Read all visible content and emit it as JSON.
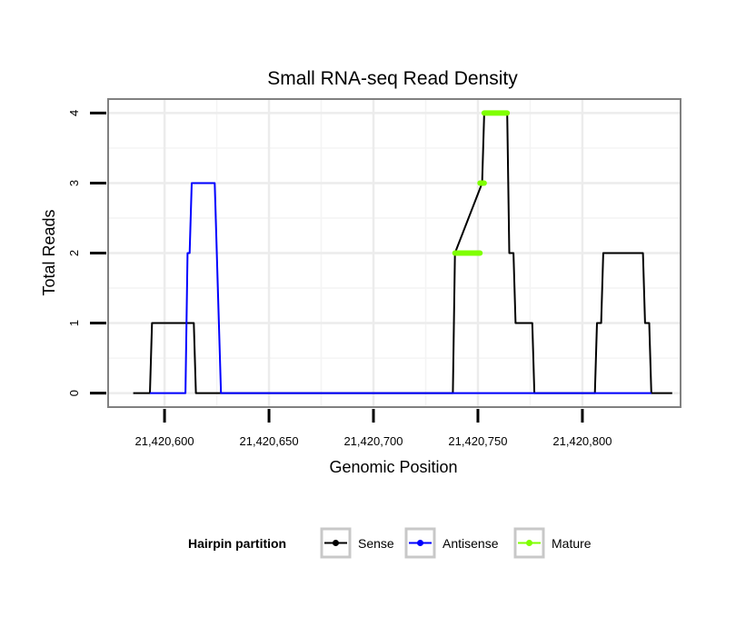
{
  "chart_data": {
    "type": "line",
    "title": "Small RNA-seq Read Density",
    "xlabel": "Genomic Position",
    "ylabel": "Total Reads",
    "xlim": [
      21420573,
      21420847
    ],
    "ylim": [
      -0.2,
      4.2
    ],
    "x_ticks": [
      21420600,
      21420650,
      21420700,
      21420750,
      21420800
    ],
    "x_tick_labels": [
      "21,420,600",
      "21,420,650",
      "21,420,700",
      "21,420,750",
      "21,420,800"
    ],
    "y_ticks": [
      0,
      1,
      2,
      3,
      4
    ],
    "y_tick_labels": [
      "0",
      "1",
      "2",
      "3",
      "4"
    ],
    "grid": true,
    "legend": {
      "title": "Hairpin partition",
      "placement": "bottom",
      "entries": [
        "Sense",
        "Antisense",
        "Mature"
      ]
    },
    "series": [
      {
        "name": "Sense",
        "color": "#000000",
        "style": "line",
        "x": [
          21420585,
          21420593,
          21420594,
          21420614,
          21420615,
          21420738,
          21420739,
          21420752,
          21420753,
          21420764,
          21420765,
          21420767,
          21420768,
          21420776,
          21420777,
          21420806,
          21420807,
          21420809,
          21420810,
          21420829,
          21420830,
          21420832,
          21420833,
          21420843
        ],
        "values": [
          0,
          0,
          1,
          1,
          0,
          0,
          2,
          3,
          4,
          4,
          2,
          2,
          1,
          1,
          0,
          0,
          1,
          1,
          2,
          2,
          1,
          1,
          0,
          0
        ]
      },
      {
        "name": "Antisense",
        "color": "#0000ff",
        "style": "line",
        "x": [
          21420593,
          21420610,
          21420611,
          21420612,
          21420613,
          21420624,
          21420627,
          21420833
        ],
        "values": [
          0,
          0,
          2,
          2,
          3,
          3,
          0,
          0
        ]
      },
      {
        "name": "Mature",
        "color": "#7fff00",
        "style": "segments",
        "segments": [
          {
            "x": [
              21420739,
              21420751
            ],
            "value": 2
          },
          {
            "x": [
              21420751,
              21420753
            ],
            "value": 3
          },
          {
            "x": [
              21420753,
              21420764
            ],
            "value": 4
          }
        ]
      }
    ]
  }
}
